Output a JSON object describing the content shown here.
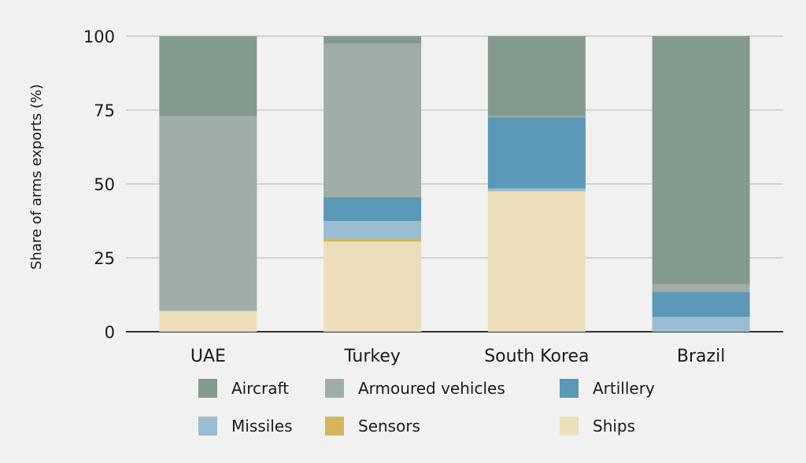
{
  "chart_data": {
    "type": "bar",
    "stacked": true,
    "ylabel": "Share of arms exports (%)",
    "xlabel": "",
    "ylim": [
      0,
      100
    ],
    "yticks": [
      0,
      25,
      50,
      75,
      100
    ],
    "grid": true,
    "legend_position": "bottom",
    "categories": [
      "UAE",
      "Turkey",
      "South Korea",
      "Brazil"
    ],
    "series": [
      {
        "name": "Ships",
        "color": "#ecdeba",
        "values": [
          7,
          30.5,
          47.5,
          0
        ]
      },
      {
        "name": "Sensors",
        "color": "#d4b55c",
        "values": [
          0,
          1,
          0,
          0
        ]
      },
      {
        "name": "Missiles",
        "color": "#9abdd2",
        "values": [
          0,
          6,
          1,
          5
        ]
      },
      {
        "name": "Artillery",
        "color": "#5b97b6",
        "values": [
          0,
          8,
          24,
          8.5
        ]
      },
      {
        "name": "Armoured vehicles",
        "color": "#9eaea6",
        "values": [
          66,
          52,
          0.5,
          2.5
        ]
      },
      {
        "name": "Aircraft",
        "color": "#849a8f",
        "values": [
          27,
          2.5,
          27,
          84
        ]
      }
    ],
    "legend_order": [
      "Aircraft",
      "Armoured vehicles",
      "Artillery",
      "Missiles",
      "Sensors",
      "Ships"
    ]
  }
}
